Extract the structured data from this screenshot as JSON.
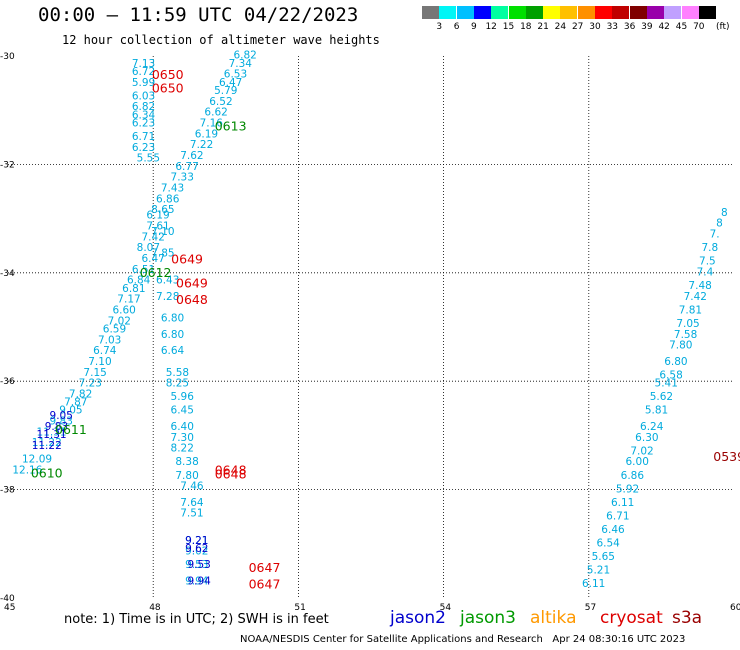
{
  "title": "00:00 – 11:59 UTC 04/22/2023",
  "subtitle": "12 hour collection of altimeter wave heights",
  "colorbar": {
    "colors": [
      "#777777",
      "#00f6f6",
      "#00c0ff",
      "#0000ff",
      "#00ffa0",
      "#00e000",
      "#00a000",
      "#ffff00",
      "#ffc000",
      "#ff9000",
      "#ff0000",
      "#c00000",
      "#800000",
      "#9900aa",
      "#c0a0ff",
      "#ff80ff",
      "#000000"
    ],
    "labels": [
      "3",
      "6",
      "9",
      "12",
      "15",
      "18",
      "21",
      "24",
      "27",
      "30",
      "33",
      "36",
      "39",
      "42",
      "45",
      "70"
    ],
    "unit": "(ft)"
  },
  "axes": {
    "lat_labels": [
      "-30",
      "-32",
      "-34",
      "-36",
      "-38",
      "-40"
    ],
    "lon_labels": [
      "45",
      "48",
      "51",
      "54",
      "57",
      "60"
    ]
  },
  "note": "note: 1) Time is in UTC; 2) SWH is in feet",
  "satellites": [
    {
      "name": "jason2",
      "color": "#0000cc"
    },
    {
      "name": "jason3",
      "color": "#009900"
    },
    {
      "name": "altika",
      "color": "#ff9900"
    },
    {
      "name": "cryosat",
      "color": "#dd0000"
    },
    {
      "name": "s3a",
      "color": "#990000"
    }
  ],
  "credit": "NOAA/NESDIS Center for Satellite Applications and Research   Apr 24 08:30:16 UTC 2023",
  "time_labels": [
    {
      "text": "0650",
      "color": "#dd0000",
      "lat": -30.35,
      "lon": 48.3
    },
    {
      "text": "0650",
      "color": "#dd0000",
      "lat": -30.6,
      "lon": 48.3
    },
    {
      "text": "0613",
      "color": "#008800",
      "lat": -31.3,
      "lon": 49.6
    },
    {
      "text": "0649",
      "color": "#dd0000",
      "lat": -33.75,
      "lon": 48.7
    },
    {
      "text": "0612",
      "color": "#008800",
      "lat": -34.0,
      "lon": 48.05
    },
    {
      "text": "0649",
      "color": "#dd0000",
      "lat": -34.2,
      "lon": 48.8
    },
    {
      "text": "0648",
      "color": "#dd0000",
      "lat": -34.5,
      "lon": 48.8
    },
    {
      "text": "0611",
      "color": "#008800",
      "lat": -36.9,
      "lon": 46.3
    },
    {
      "text": "0610",
      "color": "#008800",
      "lat": -37.7,
      "lon": 45.8
    },
    {
      "text": "0648",
      "color": "#dd0000",
      "lat": -37.65,
      "lon": 49.6
    },
    {
      "text": "0648",
      "color": "#dd0000",
      "lat": -37.72,
      "lon": 49.6
    },
    {
      "text": "0539",
      "color": "#990000",
      "lat": -37.4,
      "lon": 59.9
    },
    {
      "text": "0647",
      "color": "#dd0000",
      "lat": -39.45,
      "lon": 50.3
    },
    {
      "text": "0647",
      "color": "#dd0000",
      "lat": -39.75,
      "lon": 50.3
    }
  ],
  "chart_data": {
    "type": "scatter",
    "title": "00:00 – 11:59 UTC 04/22/2023",
    "subtitle": "12 hour collection of altimeter wave heights",
    "xlim": [
      45,
      60
    ],
    "ylim": [
      -40,
      -30
    ],
    "units": "ft",
    "tracks": [
      {
        "name": "jason3 track 0610-0613",
        "color": "#00aadd",
        "points": [
          [
            "12.16",
            -37.7,
            45.4
          ],
          [
            "12.09",
            -37.5,
            45.6
          ],
          [
            "11.22",
            -37.2,
            45.8
          ],
          [
            "11.31",
            -37.0,
            45.9
          ],
          [
            "9.83",
            -36.8,
            46.1
          ],
          [
            "9.05",
            -36.6,
            46.3
          ],
          [
            "7.87",
            -36.45,
            46.4
          ],
          [
            "7.82",
            -36.3,
            46.5
          ],
          [
            "7.23",
            -36.1,
            46.7
          ],
          [
            "7.15",
            -35.9,
            46.8
          ],
          [
            "7.10",
            -35.7,
            46.9
          ],
          [
            "6.74",
            -35.5,
            47.0
          ],
          [
            "7.03",
            -35.3,
            47.1
          ],
          [
            "6.59",
            -35.1,
            47.2
          ],
          [
            "7.02",
            -34.95,
            47.3
          ],
          [
            "6.60",
            -34.75,
            47.4
          ],
          [
            "7.17",
            -34.55,
            47.5
          ],
          [
            "6.81",
            -34.35,
            47.6
          ],
          [
            "6.84",
            -34.2,
            47.7
          ],
          [
            "6.51",
            -34.0,
            47.8
          ],
          [
            "6.47",
            -33.8,
            48.0
          ],
          [
            "8.07",
            -33.6,
            47.9
          ],
          [
            "7.42",
            -33.4,
            48.0
          ],
          [
            "7.61",
            -33.2,
            48.1
          ],
          [
            "8.65",
            -32.9,
            48.2
          ],
          [
            "6.86",
            -32.7,
            48.3
          ],
          [
            "7.43",
            -32.5,
            48.4
          ],
          [
            "7.33",
            -32.3,
            48.6
          ],
          [
            "6.77",
            -32.1,
            48.7
          ],
          [
            "7.62",
            -31.9,
            48.8
          ],
          [
            "7.22",
            -31.7,
            49.0
          ],
          [
            "6.19",
            -31.5,
            49.1
          ],
          [
            "7.16",
            -31.3,
            49.2
          ],
          [
            "6.62",
            -31.1,
            49.3
          ],
          [
            "6.52",
            -30.9,
            49.4
          ],
          [
            "5.79",
            -30.7,
            49.5
          ],
          [
            "6.47",
            -30.55,
            49.6
          ],
          [
            "6.53",
            -30.4,
            49.7
          ],
          [
            "7.34",
            -30.2,
            49.8
          ],
          [
            "6.82",
            -30.05,
            49.9
          ]
        ]
      },
      {
        "name": "cryosat track 0647-0650",
        "color": "#00aadd",
        "points": [
          [
            "7.13",
            -30.2,
            47.8
          ],
          [
            "6.72",
            -30.35,
            47.8
          ],
          [
            "5.99",
            -30.55,
            47.8
          ],
          [
            "6.03",
            -30.8,
            47.8
          ],
          [
            "6.82",
            -31.0,
            47.8
          ],
          [
            "6.34",
            -31.15,
            47.8
          ],
          [
            "6.23",
            -31.3,
            47.8
          ],
          [
            "6.71",
            -31.55,
            47.8
          ],
          [
            "6.23",
            -31.75,
            47.8
          ],
          [
            "5.55",
            -31.95,
            47.9
          ],
          [
            "6.19",
            -33.0,
            48.1
          ],
          [
            "7.10",
            -33.3,
            48.2
          ],
          [
            "7.85",
            -33.7,
            48.2
          ],
          [
            "6.43",
            -34.2,
            48.3
          ],
          [
            "7.28",
            -34.5,
            48.3
          ],
          [
            "6.80",
            -34.9,
            48.4
          ],
          [
            "6.80",
            -35.2,
            48.4
          ],
          [
            "6.64",
            -35.5,
            48.4
          ],
          [
            "5.58",
            -35.9,
            48.5
          ],
          [
            "8.25",
            -36.1,
            48.5
          ],
          [
            "5.96",
            -36.35,
            48.6
          ],
          [
            "6.45",
            -36.6,
            48.6
          ],
          [
            "6.40",
            -36.9,
            48.6
          ],
          [
            "7.30",
            -37.1,
            48.6
          ],
          [
            "8.22",
            -37.3,
            48.6
          ],
          [
            "8.38",
            -37.55,
            48.7
          ],
          [
            "7.80",
            -37.8,
            48.7
          ],
          [
            "7.46",
            -38.0,
            48.8
          ],
          [
            "7.64",
            -38.3,
            48.8
          ],
          [
            "7.51",
            -38.5,
            48.8
          ],
          [
            "9.21",
            -39.0,
            48.9
          ],
          [
            "9.02",
            -39.2,
            48.9
          ],
          [
            "9.53",
            -39.45,
            48.9
          ],
          [
            "9.94",
            -39.75,
            48.9
          ]
        ]
      },
      {
        "name": "right track 0539",
        "color": "#00aadd",
        "points": [
          [
            "6.11",
            -39.8,
            57.1
          ],
          [
            "5.21",
            -39.55,
            57.2
          ],
          [
            "5.65",
            -39.3,
            57.3
          ],
          [
            "6.54",
            -39.05,
            57.4
          ],
          [
            "6.46",
            -38.8,
            57.5
          ],
          [
            "6.71",
            -38.55,
            57.6
          ],
          [
            "6.11",
            -38.3,
            57.7
          ],
          [
            "5.92",
            -38.05,
            57.8
          ],
          [
            "6.86",
            -37.8,
            57.9
          ],
          [
            "6.00",
            -37.55,
            58.0
          ],
          [
            "7.02",
            -37.35,
            58.1
          ],
          [
            "6.30",
            -37.1,
            58.2
          ],
          [
            "6.24",
            -36.9,
            58.3
          ],
          [
            "5.81",
            -36.6,
            58.4
          ],
          [
            "5.62",
            -36.35,
            58.5
          ],
          [
            "5.41",
            -36.1,
            58.6
          ],
          [
            "6.58",
            -35.95,
            58.7
          ],
          [
            "6.80",
            -35.7,
            58.8
          ],
          [
            "7.80",
            -35.4,
            58.9
          ],
          [
            "7.58",
            -35.2,
            59.0
          ],
          [
            "7.05",
            -35.0,
            59.05
          ],
          [
            "7.81",
            -34.75,
            59.1
          ],
          [
            "7.42",
            -34.5,
            59.2
          ],
          [
            "7.48",
            -34.3,
            59.3
          ],
          [
            "7.4",
            -34.05,
            59.4
          ],
          [
            "7.5",
            -33.85,
            59.45
          ],
          [
            "7.8",
            -33.6,
            59.5
          ],
          [
            "7.",
            -33.35,
            59.6
          ],
          [
            "8",
            -33.15,
            59.7
          ],
          [
            "8",
            -32.95,
            59.8
          ]
        ]
      },
      {
        "name": "dark blue points",
        "color": "#0000cc",
        "points": [
          [
            "9.05",
            -36.7,
            46.1
          ],
          [
            "9.83",
            -36.9,
            46.0
          ],
          [
            "11.31",
            -37.05,
            45.9
          ],
          [
            "11.22",
            -37.25,
            45.8
          ],
          [
            "9.21",
            -39.0,
            48.9
          ],
          [
            "9.62",
            -39.15,
            48.9
          ],
          [
            "9.53",
            -39.45,
            48.95
          ],
          [
            "9.94",
            -39.75,
            48.95
          ]
        ]
      }
    ]
  }
}
